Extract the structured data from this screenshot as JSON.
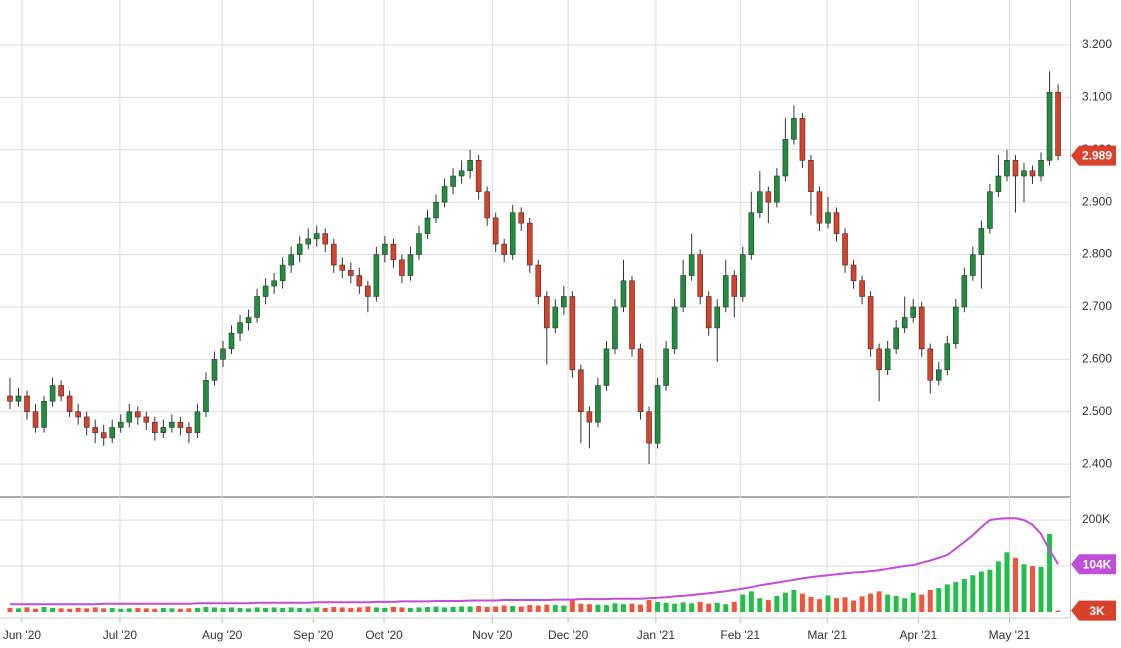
{
  "chart_data": {
    "type": "candlestick",
    "xlim": [
      -1.17,
      124.4
    ],
    "xticks": [
      {
        "value": 1.4,
        "label": "Jun '20"
      },
      {
        "value": 12.9,
        "label": "Jul '20"
      },
      {
        "value": 24.9,
        "label": "Aug '20"
      },
      {
        "value": 35.6,
        "label": "Sep '20"
      },
      {
        "value": 43.9,
        "label": "Oct '20"
      },
      {
        "value": 56.6,
        "label": "Nov '20"
      },
      {
        "value": 65.5,
        "label": "Dec '20"
      },
      {
        "value": 75.8,
        "label": "Jan '21"
      },
      {
        "value": 85.7,
        "label": "Feb '21"
      },
      {
        "value": 95.9,
        "label": "Mar '21"
      },
      {
        "value": 106.6,
        "label": "Apr '21"
      },
      {
        "value": 117.3,
        "label": "May '21"
      }
    ],
    "ylim": [
      2.341,
      3.286
    ],
    "yticks": [
      {
        "value": 2.4,
        "label": "2.400"
      },
      {
        "value": 2.5,
        "label": "2.500"
      },
      {
        "value": 2.6,
        "label": "2.600"
      },
      {
        "value": 2.7,
        "label": "2.700"
      },
      {
        "value": 2.8,
        "label": "2.800"
      },
      {
        "value": 2.9,
        "label": "2.900"
      },
      {
        "value": 3.0,
        "label": "3.000"
      },
      {
        "value": 3.1,
        "label": "3.100"
      },
      {
        "value": 3.2,
        "label": "3.200"
      }
    ],
    "y2lim": [
      0,
      248000
    ],
    "y2ticks": [
      {
        "value": 100000,
        "label": null
      },
      {
        "value": 200000,
        "label": "200K"
      }
    ],
    "up_color": "#1f8f3f",
    "down_color": "#d9412b",
    "volume_up_color": "#22c04a",
    "volume_down_color": "#f2553d",
    "ma_color": "#c04fd8",
    "grid": true,
    "candles": [
      [
        2.53,
        2.565,
        2.505,
        2.52
      ],
      [
        2.52,
        2.545,
        2.51,
        2.53
      ],
      [
        2.53,
        2.54,
        2.485,
        2.5
      ],
      [
        2.5,
        2.515,
        2.46,
        2.47
      ],
      [
        2.47,
        2.53,
        2.46,
        2.52
      ],
      [
        2.52,
        2.565,
        2.51,
        2.55
      ],
      [
        2.55,
        2.56,
        2.52,
        2.53
      ],
      [
        2.53,
        2.54,
        2.49,
        2.5
      ],
      [
        2.5,
        2.515,
        2.475,
        2.49
      ],
      [
        2.49,
        2.5,
        2.455,
        2.47
      ],
      [
        2.47,
        2.485,
        2.44,
        2.46
      ],
      [
        2.46,
        2.475,
        2.435,
        2.45
      ],
      [
        2.45,
        2.485,
        2.44,
        2.47
      ],
      [
        2.47,
        2.495,
        2.46,
        2.48
      ],
      [
        2.48,
        2.515,
        2.47,
        2.5
      ],
      [
        2.5,
        2.51,
        2.475,
        2.49
      ],
      [
        2.49,
        2.5,
        2.465,
        2.48
      ],
      [
        2.48,
        2.49,
        2.445,
        2.46
      ],
      [
        2.46,
        2.485,
        2.45,
        2.47
      ],
      [
        2.47,
        2.495,
        2.46,
        2.48
      ],
      [
        2.48,
        2.49,
        2.455,
        2.47
      ],
      [
        2.47,
        2.48,
        2.44,
        2.46
      ],
      [
        2.46,
        2.515,
        2.45,
        2.5
      ],
      [
        2.5,
        2.575,
        2.49,
        2.56
      ],
      [
        2.56,
        2.615,
        2.55,
        2.6
      ],
      [
        2.6,
        2.635,
        2.585,
        2.62
      ],
      [
        2.62,
        2.665,
        2.61,
        2.65
      ],
      [
        2.65,
        2.685,
        2.635,
        2.67
      ],
      [
        2.67,
        2.695,
        2.655,
        2.68
      ],
      [
        2.68,
        2.735,
        2.67,
        2.72
      ],
      [
        2.72,
        2.755,
        2.705,
        2.74
      ],
      [
        2.74,
        2.765,
        2.725,
        2.75
      ],
      [
        2.75,
        2.795,
        2.735,
        2.78
      ],
      [
        2.78,
        2.815,
        2.765,
        2.8
      ],
      [
        2.8,
        2.835,
        2.785,
        2.82
      ],
      [
        2.82,
        2.85,
        2.81,
        2.83
      ],
      [
        2.83,
        2.855,
        2.815,
        2.84
      ],
      [
        2.84,
        2.85,
        2.805,
        2.82
      ],
      [
        2.82,
        2.83,
        2.765,
        2.78
      ],
      [
        2.78,
        2.795,
        2.755,
        2.77
      ],
      [
        2.77,
        2.785,
        2.745,
        2.76
      ],
      [
        2.76,
        2.775,
        2.725,
        2.74
      ],
      [
        2.74,
        2.75,
        2.69,
        2.72
      ],
      [
        2.72,
        2.815,
        2.71,
        2.8
      ],
      [
        2.8,
        2.835,
        2.785,
        2.82
      ],
      [
        2.82,
        2.83,
        2.775,
        2.79
      ],
      [
        2.79,
        2.8,
        2.745,
        2.76
      ],
      [
        2.76,
        2.815,
        2.75,
        2.8
      ],
      [
        2.8,
        2.855,
        2.79,
        2.84
      ],
      [
        2.84,
        2.885,
        2.83,
        2.87
      ],
      [
        2.87,
        2.915,
        2.86,
        2.9
      ],
      [
        2.9,
        2.945,
        2.89,
        2.93
      ],
      [
        2.93,
        2.965,
        2.915,
        2.95
      ],
      [
        2.95,
        2.98,
        2.935,
        2.96
      ],
      [
        2.96,
        3.0,
        2.945,
        2.98
      ],
      [
        2.98,
        2.99,
        2.905,
        2.92
      ],
      [
        2.92,
        2.93,
        2.855,
        2.87
      ],
      [
        2.87,
        2.88,
        2.805,
        2.82
      ],
      [
        2.82,
        2.83,
        2.785,
        2.8
      ],
      [
        2.8,
        2.895,
        2.79,
        2.88
      ],
      [
        2.88,
        2.89,
        2.845,
        2.86
      ],
      [
        2.86,
        2.87,
        2.765,
        2.78
      ],
      [
        2.78,
        2.79,
        2.705,
        2.72
      ],
      [
        2.72,
        2.73,
        2.59,
        2.66
      ],
      [
        2.66,
        2.715,
        2.65,
        2.7
      ],
      [
        2.7,
        2.74,
        2.685,
        2.72
      ],
      [
        2.72,
        2.73,
        2.565,
        2.58
      ],
      [
        2.58,
        2.59,
        2.44,
        2.5
      ],
      [
        2.5,
        2.51,
        2.43,
        2.48
      ],
      [
        2.48,
        2.565,
        2.47,
        2.55
      ],
      [
        2.55,
        2.635,
        2.54,
        2.62
      ],
      [
        2.62,
        2.715,
        2.61,
        2.7
      ],
      [
        2.7,
        2.79,
        2.69,
        2.75
      ],
      [
        2.75,
        2.76,
        2.605,
        2.62
      ],
      [
        2.62,
        2.63,
        2.485,
        2.5
      ],
      [
        2.5,
        2.51,
        2.4,
        2.44
      ],
      [
        2.44,
        2.565,
        2.43,
        2.55
      ],
      [
        2.55,
        2.635,
        2.54,
        2.62
      ],
      [
        2.62,
        2.715,
        2.61,
        2.7
      ],
      [
        2.7,
        2.79,
        2.69,
        2.76
      ],
      [
        2.76,
        2.84,
        2.75,
        2.8
      ],
      [
        2.8,
        2.81,
        2.705,
        2.72
      ],
      [
        2.72,
        2.73,
        2.645,
        2.66
      ],
      [
        2.66,
        2.715,
        2.595,
        2.7
      ],
      [
        2.7,
        2.79,
        2.69,
        2.76
      ],
      [
        2.76,
        2.77,
        2.68,
        2.72
      ],
      [
        2.72,
        2.815,
        2.71,
        2.8
      ],
      [
        2.8,
        2.92,
        2.79,
        2.88
      ],
      [
        2.88,
        2.96,
        2.87,
        2.92
      ],
      [
        2.92,
        2.93,
        2.86,
        2.9
      ],
      [
        2.9,
        2.965,
        2.89,
        2.95
      ],
      [
        2.95,
        3.06,
        2.94,
        3.02
      ],
      [
        3.02,
        3.085,
        3.01,
        3.06
      ],
      [
        3.06,
        3.07,
        2.965,
        2.98
      ],
      [
        2.98,
        2.99,
        2.875,
        2.92
      ],
      [
        2.92,
        2.93,
        2.845,
        2.86
      ],
      [
        2.86,
        2.91,
        2.85,
        2.88
      ],
      [
        2.88,
        2.89,
        2.825,
        2.84
      ],
      [
        2.84,
        2.85,
        2.765,
        2.78
      ],
      [
        2.78,
        2.79,
        2.735,
        2.75
      ],
      [
        2.75,
        2.76,
        2.705,
        2.72
      ],
      [
        2.72,
        2.73,
        2.605,
        2.62
      ],
      [
        2.62,
        2.63,
        2.52,
        2.58
      ],
      [
        2.58,
        2.635,
        2.57,
        2.62
      ],
      [
        2.62,
        2.675,
        2.61,
        2.66
      ],
      [
        2.66,
        2.72,
        2.65,
        2.68
      ],
      [
        2.68,
        2.715,
        2.67,
        2.7
      ],
      [
        2.7,
        2.71,
        2.605,
        2.62
      ],
      [
        2.62,
        2.63,
        2.535,
        2.56
      ],
      [
        2.56,
        2.595,
        2.55,
        2.58
      ],
      [
        2.58,
        2.645,
        2.57,
        2.63
      ],
      [
        2.63,
        2.715,
        2.62,
        2.7
      ],
      [
        2.7,
        2.775,
        2.69,
        2.76
      ],
      [
        2.76,
        2.815,
        2.75,
        2.8
      ],
      [
        2.8,
        2.865,
        2.735,
        2.85
      ],
      [
        2.85,
        2.935,
        2.84,
        2.92
      ],
      [
        2.92,
        2.99,
        2.91,
        2.95
      ],
      [
        2.95,
        3.0,
        2.94,
        2.98
      ],
      [
        2.98,
        2.99,
        2.88,
        2.95
      ],
      [
        2.95,
        2.975,
        2.9,
        2.96
      ],
      [
        2.96,
        2.97,
        2.935,
        2.95
      ],
      [
        2.95,
        2.995,
        2.94,
        2.98
      ],
      [
        2.98,
        3.15,
        2.97,
        3.11
      ],
      [
        3.11,
        3.125,
        2.98,
        2.989
      ]
    ],
    "volume": [
      9000,
      8000,
      10000,
      7000,
      11000,
      9000,
      8000,
      7000,
      9000,
      8000,
      10000,
      8000,
      9000,
      7000,
      8000,
      9000,
      8000,
      7000,
      9000,
      8000,
      7000,
      8000,
      9000,
      11000,
      10000,
      9000,
      10000,
      9000,
      8000,
      10000,
      9000,
      10000,
      9000,
      10000,
      9000,
      8000,
      10000,
      9000,
      11000,
      10000,
      9000,
      10000,
      12000,
      10000,
      9000,
      11000,
      10000,
      9000,
      10000,
      11000,
      12000,
      10000,
      11000,
      12000,
      12000,
      13000,
      11000,
      12000,
      14000,
      13000,
      12000,
      15000,
      14000,
      16000,
      15000,
      14000,
      28000,
      18000,
      17000,
      16000,
      15000,
      19000,
      17000,
      18000,
      16000,
      26000,
      22000,
      20000,
      18000,
      21000,
      19000,
      22000,
      18000,
      20000,
      17000,
      22000,
      38000,
      45000,
      30000,
      26000,
      35000,
      42000,
      48000,
      40000,
      33000,
      28000,
      36000,
      30000,
      32000,
      25000,
      34000,
      40000,
      45000,
      38000,
      35000,
      30000,
      42000,
      38000,
      48000,
      52000,
      60000,
      65000,
      72000,
      80000,
      88000,
      92000,
      110000,
      130000,
      118000,
      104000,
      100000,
      98000,
      170000,
      3000
    ],
    "volume_last_label": "3K",
    "volume_ma": [
      17000,
      17000,
      17000,
      17000,
      17000,
      17000,
      17000,
      17000,
      17000,
      17000,
      17000,
      18000,
      18000,
      18000,
      18000,
      18000,
      18000,
      18000,
      18000,
      18000,
      18000,
      18000,
      19000,
      19000,
      19000,
      19000,
      19000,
      19000,
      19000,
      20000,
      20000,
      20000,
      20000,
      20000,
      20000,
      20000,
      21000,
      21000,
      21000,
      21000,
      21000,
      21000,
      21000,
      22000,
      22000,
      22000,
      23000,
      23000,
      23000,
      23000,
      24000,
      24000,
      24000,
      24000,
      25000,
      25000,
      25000,
      25000,
      26000,
      26000,
      26000,
      26000,
      26000,
      26000,
      27000,
      27000,
      27000,
      28000,
      28000,
      28000,
      28000,
      29000,
      29000,
      29000,
      29000,
      30000,
      31000,
      32000,
      34000,
      35000,
      37000,
      39000,
      41000,
      43000,
      45000,
      48000,
      51000,
      54000,
      58000,
      61000,
      64000,
      67000,
      70000,
      73000,
      76000,
      78000,
      80000,
      82000,
      84000,
      86000,
      87000,
      89000,
      91000,
      94000,
      97000,
      100000,
      102000,
      107000,
      112000,
      118000,
      124000,
      138000,
      152000,
      167000,
      185000,
      200000,
      203000,
      204000,
      204000,
      200000,
      190000,
      170000,
      135000,
      104000
    ],
    "volume_ma_last_label": "104K"
  }
}
